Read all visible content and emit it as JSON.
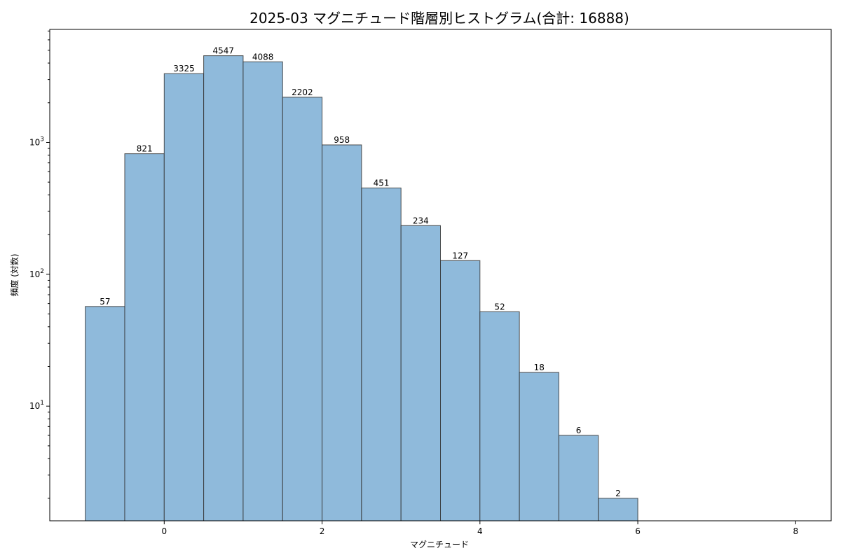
{
  "chart_data": {
    "type": "bar",
    "title": "2025-03 マグニチュード階層別ヒストグラム(合計: 16888)",
    "xlabel": "マグニチュード",
    "ylabel": "頻度 (対数)",
    "y_scale": "log",
    "xlim": [
      -1.45,
      8.45
    ],
    "ylim": [
      1.35,
      7200
    ],
    "x_ticks": [
      0,
      2,
      4,
      6,
      8
    ],
    "x_tick_labels": [
      "0",
      "2",
      "4",
      "6",
      "8"
    ],
    "y_ticks": [
      10,
      100,
      1000
    ],
    "y_tick_labels": [
      {
        "base": "10",
        "exp": "1"
      },
      {
        "base": "10",
        "exp": "2"
      },
      {
        "base": "10",
        "exp": "3"
      }
    ],
    "bins": [
      {
        "x0": -1.0,
        "x1": -0.5,
        "value": 57,
        "label": "57"
      },
      {
        "x0": -0.5,
        "x1": 0.0,
        "value": 821,
        "label": "821"
      },
      {
        "x0": 0.0,
        "x1": 0.5,
        "value": 3325,
        "label": "3325"
      },
      {
        "x0": 0.5,
        "x1": 1.0,
        "value": 4547,
        "label": "4547"
      },
      {
        "x0": 1.0,
        "x1": 1.5,
        "value": 4088,
        "label": "4088"
      },
      {
        "x0": 1.5,
        "x1": 2.0,
        "value": 2202,
        "label": "2202"
      },
      {
        "x0": 2.0,
        "x1": 2.5,
        "value": 958,
        "label": "958"
      },
      {
        "x0": 2.5,
        "x1": 3.0,
        "value": 451,
        "label": "451"
      },
      {
        "x0": 3.0,
        "x1": 3.5,
        "value": 234,
        "label": "234"
      },
      {
        "x0": 3.5,
        "x1": 4.0,
        "value": 127,
        "label": "127"
      },
      {
        "x0": 4.0,
        "x1": 4.5,
        "value": 52,
        "label": "52"
      },
      {
        "x0": 4.5,
        "x1": 5.0,
        "value": 18,
        "label": "18"
      },
      {
        "x0": 5.0,
        "x1": 5.5,
        "value": 6,
        "label": "6"
      },
      {
        "x0": 5.5,
        "x1": 6.0,
        "value": 2,
        "label": "2"
      }
    ],
    "bar_color": "#8fbadb",
    "edge_color": "#333333",
    "grid": false,
    "legend": "none"
  }
}
